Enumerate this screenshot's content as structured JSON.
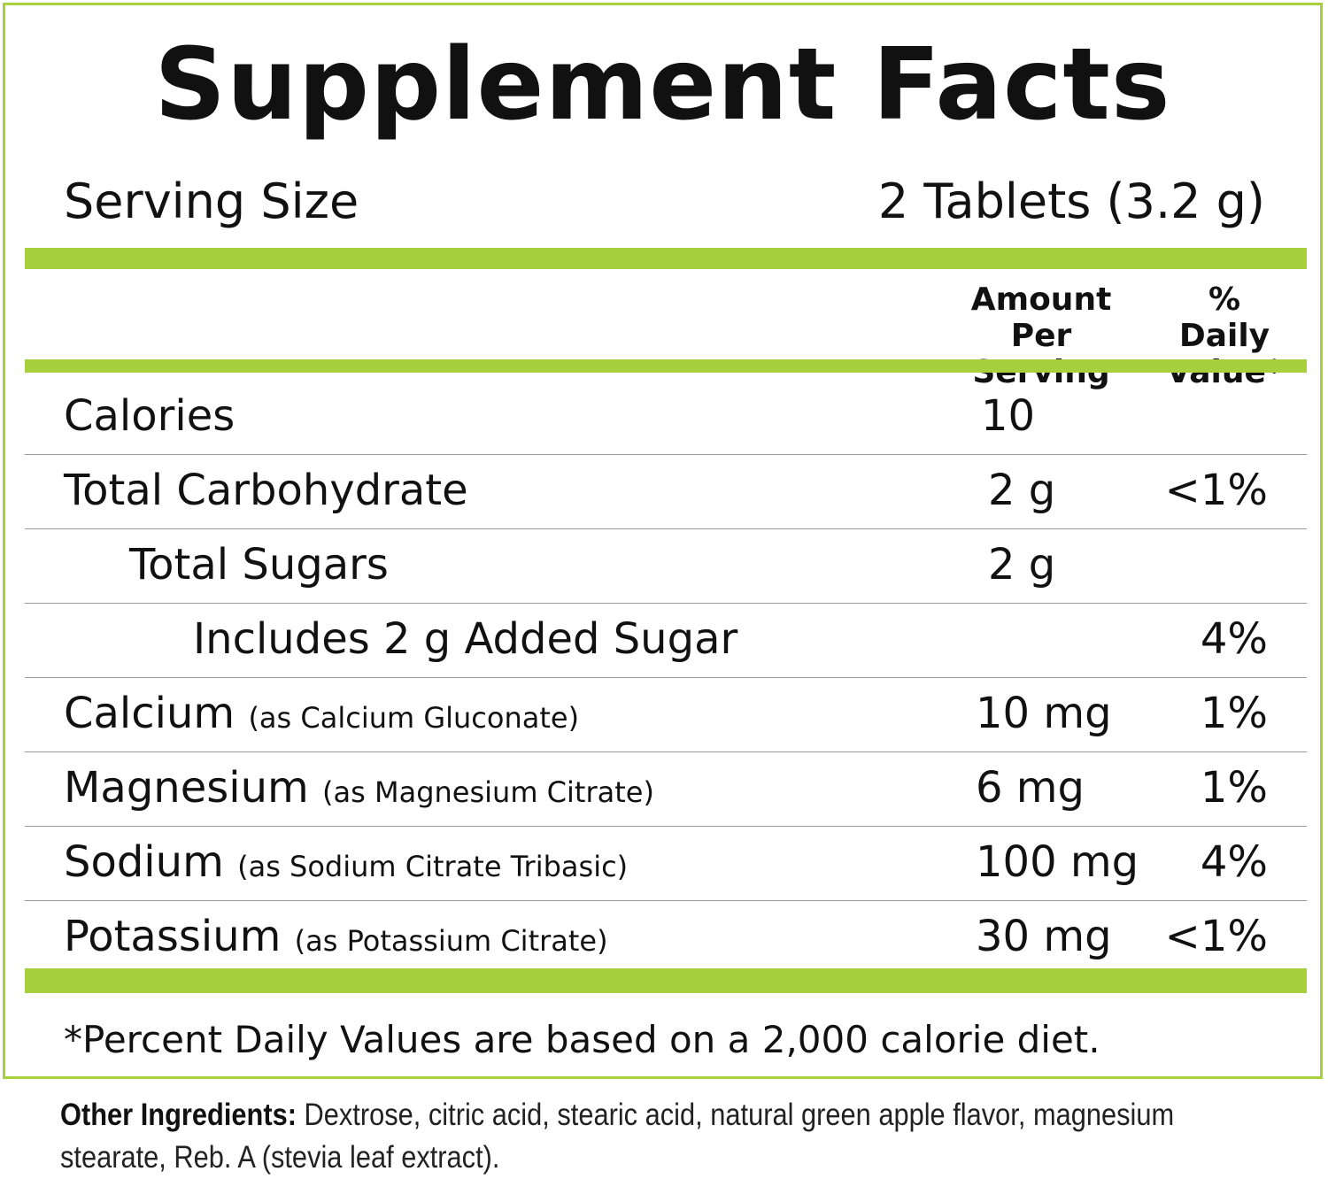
{
  "title": "Supplement Facts",
  "serving": {
    "label": "Serving Size",
    "value": "2 Tablets (3.2 g)"
  },
  "header": {
    "amount_line1": "Amount",
    "amount_line2": "Per Serving",
    "dv_line1": "% Daily",
    "dv_line2": "Value*"
  },
  "rows": [
    {
      "name": "Calories",
      "source": "",
      "amount": "10",
      "dv": ""
    },
    {
      "name": "Total Carbohydrate",
      "source": "",
      "amount": "2 g",
      "dv": "<1%"
    },
    {
      "name": "Total Sugars",
      "source": "",
      "amount": "2 g",
      "dv": ""
    },
    {
      "name": "Includes 2 g Added Sugar",
      "source": "",
      "amount": "",
      "dv": "4%"
    },
    {
      "name": "Calcium",
      "source": "(as Calcium Gluconate)",
      "amount": "10 mg",
      "dv": "1%"
    },
    {
      "name": "Magnesium",
      "source": "(as Magnesium Citrate)",
      "amount": "6 mg",
      "dv": "1%"
    },
    {
      "name": "Sodium",
      "source": "(as Sodium Citrate Tribasic)",
      "amount": "100 mg",
      "dv": "4%"
    },
    {
      "name": "Potassium",
      "source": "(as Potassium Citrate)",
      "amount": "30 mg",
      "dv": "<1%"
    }
  ],
  "footnote": "*Percent Daily Values are based on a 2,000 calorie diet.",
  "other_ingredients": {
    "label": "Other Ingredients:",
    "text": "Dextrose, citric acid, stearic acid, natural green apple flavor, magnesium stearate, Reb. A (stevia leaf extract)."
  },
  "colors": {
    "accent": "#a8cf3c",
    "text": "#111111"
  }
}
